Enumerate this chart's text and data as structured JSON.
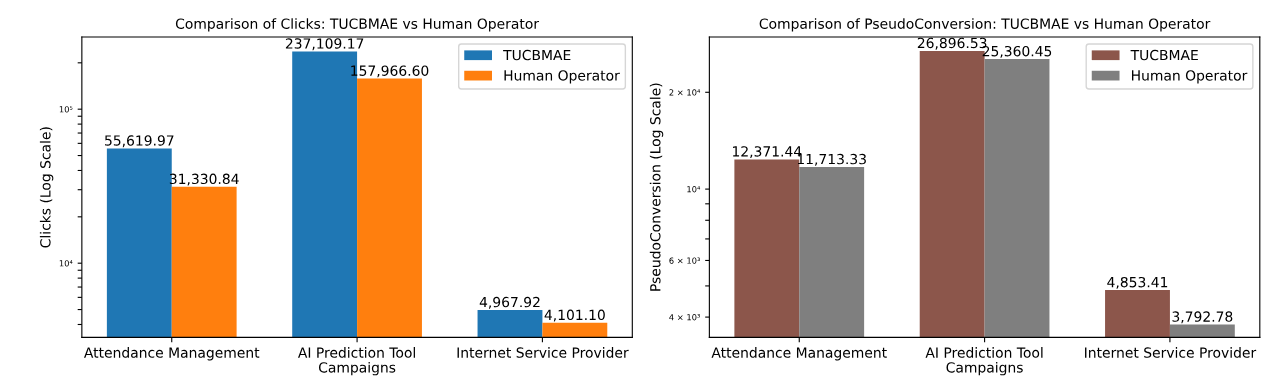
{
  "chart_data": [
    {
      "type": "bar",
      "title": "Comparison of Clicks: TUCBMAE vs Human Operator",
      "xlabel": "Campaigns",
      "ylabel": "Clicks (Log Scale)",
      "categories": [
        "Attendance Management",
        "AI Prediction Tool",
        "Internet Service Provider"
      ],
      "series": [
        {
          "name": "TUCBMAE",
          "color": "#1f77b4",
          "values": [
            55619.97,
            237109.17,
            4967.92
          ],
          "value_labels": [
            "55,619.97",
            "237,109.17",
            "4,967.92"
          ]
        },
        {
          "name": "Human Operator",
          "color": "#ff7f0e",
          "values": [
            31330.84,
            157966.6,
            4101.1
          ],
          "value_labels": [
            "31,330.84",
            "157,966.60",
            "4,101.10"
          ]
        }
      ],
      "log": "y",
      "ylim": [
        3300,
        294000
      ],
      "yticks": [
        {
          "value": 4000,
          "label": null
        },
        {
          "value": 5000,
          "label": null
        },
        {
          "value": 6000,
          "label": null
        },
        {
          "value": 7000,
          "label": null
        },
        {
          "value": 8000,
          "label": null
        },
        {
          "value": 9000,
          "label": null
        },
        {
          "value": 10000,
          "label": "10⁴"
        },
        {
          "value": 20000,
          "label": null
        },
        {
          "value": 30000,
          "label": null
        },
        {
          "value": 40000,
          "label": null
        },
        {
          "value": 50000,
          "label": null
        },
        {
          "value": 60000,
          "label": null
        },
        {
          "value": 70000,
          "label": null
        },
        {
          "value": 80000,
          "label": null
        },
        {
          "value": 90000,
          "label": null
        },
        {
          "value": 100000,
          "label": "10⁵"
        },
        {
          "value": 200000,
          "label": null
        }
      ],
      "legend": "top right",
      "grid": false
    },
    {
      "type": "bar",
      "title": "Comparison of PseudoConversion: TUCBMAE vs Human Operator",
      "xlabel": "Campaigns",
      "ylabel": "PseudoConversion (Log Scale)",
      "categories": [
        "Attendance Management",
        "AI Prediction Tool",
        "Internet Service Provider"
      ],
      "series": [
        {
          "name": "TUCBMAE",
          "color": "#8c564b",
          "values": [
            12371.44,
            26896.53,
            4853.41
          ],
          "value_labels": [
            "12,371.44",
            "26,896.53",
            "4,853.41"
          ]
        },
        {
          "name": "Human Operator",
          "color": "#7f7f7f",
          "values": [
            11713.33,
            25360.45,
            3792.78
          ],
          "value_labels": [
            "11,713.33",
            "25,360.45",
            "3,792.78"
          ]
        }
      ],
      "log": "y",
      "ylim": [
        3460,
        29700
      ],
      "yticks": [
        {
          "value": 4000,
          "label": "4 × 10³"
        },
        {
          "value": 5000,
          "label": null
        },
        {
          "value": 6000,
          "label": "6 × 10³"
        },
        {
          "value": 7000,
          "label": null
        },
        {
          "value": 8000,
          "label": null
        },
        {
          "value": 9000,
          "label": null
        },
        {
          "value": 10000,
          "label": "10⁴"
        },
        {
          "value": 20000,
          "label": "2 × 10⁴"
        }
      ],
      "legend": "top right",
      "grid": false
    }
  ]
}
